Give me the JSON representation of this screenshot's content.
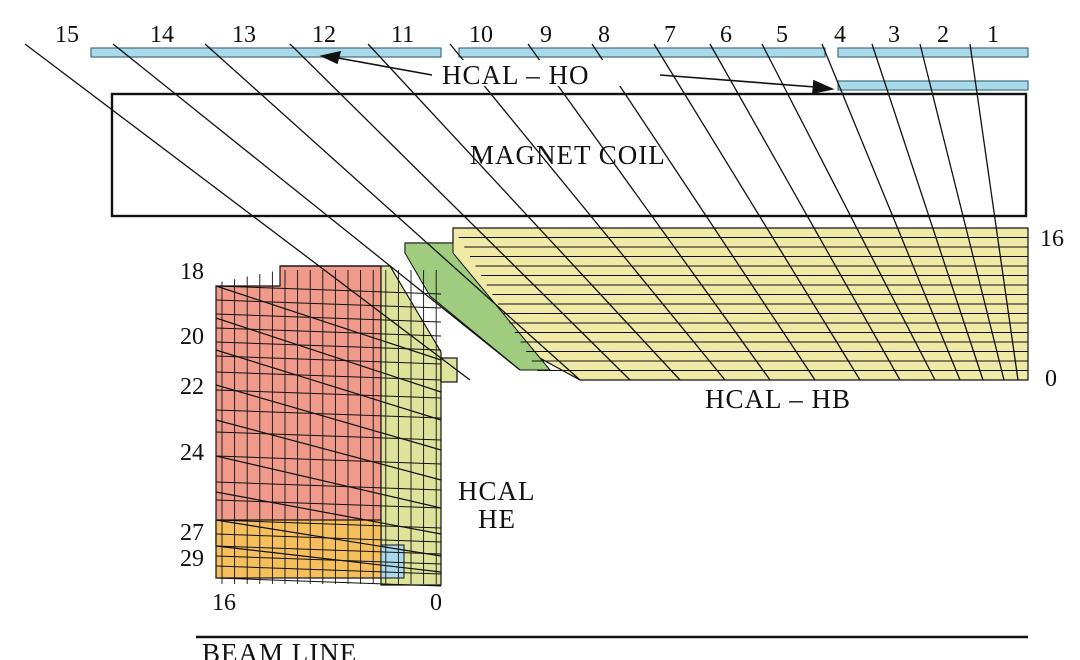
{
  "tower_numbers_top": [
    "15",
    "14",
    "13",
    "12",
    "11",
    "10",
    "9",
    "8",
    "7",
    "6",
    "5",
    "4",
    "3",
    "2",
    "1"
  ],
  "labels": {
    "hcal_ho": "HCAL – HO",
    "magnet_coil": "MAGNET  COIL",
    "hcal_hb": "HCAL – HB",
    "hcal_he_line1": "HCAL",
    "hcal_he_line2": "HE",
    "beam_line": "BEAM LINE"
  },
  "hb_depth": {
    "top": "16",
    "bottom": "0"
  },
  "he_depth_left": [
    "18",
    "20",
    "22",
    "24",
    "27",
    "29"
  ],
  "he_bottom": {
    "left": "16",
    "right": "0"
  },
  "colors": {
    "ho": "#a9d9ea",
    "hb": "#f1e9a6",
    "hb_green": "#9fcc7e",
    "he_red": "#ef9a8a",
    "he_yellow": "#dde39a",
    "he_orange": "#f6bf5d",
    "he_blue": "#a9d9ea",
    "line": "#111111"
  }
}
